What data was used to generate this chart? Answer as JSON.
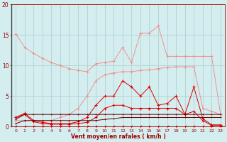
{
  "x": [
    0,
    1,
    2,
    3,
    4,
    5,
    6,
    7,
    8,
    9,
    10,
    11,
    12,
    13,
    14,
    15,
    16,
    17,
    18,
    19,
    20,
    21,
    22,
    23
  ],
  "line_upper": [
    15.2,
    13.0,
    12.0,
    11.2,
    10.5,
    10.0,
    9.5,
    9.2,
    9.0,
    10.3,
    10.5,
    10.7,
    13.0,
    10.5,
    15.3,
    15.3,
    16.5,
    11.5,
    11.5,
    11.5,
    11.5,
    11.5,
    11.5,
    2.0
  ],
  "line_rising": [
    1.0,
    1.0,
    1.0,
    1.0,
    1.0,
    1.5,
    2.0,
    3.0,
    5.0,
    7.5,
    8.5,
    8.8,
    9.0,
    9.0,
    9.2,
    9.3,
    9.5,
    9.7,
    9.8,
    9.8,
    9.8,
    3.0,
    2.5,
    2.0
  ],
  "line_red_high": [
    1.5,
    2.2,
    1.0,
    0.7,
    0.5,
    0.5,
    0.5,
    0.8,
    1.5,
    3.5,
    5.0,
    5.0,
    7.5,
    6.5,
    5.0,
    6.5,
    3.5,
    3.8,
    5.0,
    2.0,
    6.5,
    1.3,
    0.3,
    0.3
  ],
  "line_red_low": [
    1.5,
    2.0,
    0.8,
    0.5,
    0.4,
    0.4,
    0.4,
    0.5,
    0.7,
    1.5,
    3.0,
    3.5,
    3.5,
    3.0,
    3.0,
    3.0,
    3.0,
    3.0,
    3.0,
    2.0,
    2.5,
    1.0,
    0.2,
    0.2
  ],
  "line_dark1": [
    1.2,
    2.0,
    2.0,
    2.0,
    2.0,
    2.0,
    2.0,
    2.0,
    2.0,
    2.0,
    2.0,
    2.0,
    2.0,
    2.0,
    2.0,
    2.0,
    2.0,
    2.0,
    2.0,
    2.0,
    2.0,
    2.0,
    2.0,
    2.0
  ],
  "line_dark2": [
    0.5,
    1.0,
    1.0,
    1.0,
    1.0,
    1.0,
    1.0,
    1.0,
    1.0,
    1.0,
    1.2,
    1.3,
    1.5,
    1.5,
    1.5,
    1.5,
    1.5,
    1.5,
    1.5,
    1.5,
    1.5,
    1.5,
    1.5,
    1.5
  ],
  "line_near_zero": [
    0.05,
    0.05,
    0.05,
    0.05,
    0.05,
    0.05,
    0.05,
    0.05,
    0.05,
    0.05,
    0.05,
    0.05,
    0.05,
    0.05,
    0.05,
    0.05,
    0.05,
    0.05,
    0.05,
    0.05,
    0.05,
    0.05,
    0.05,
    0.05
  ],
  "color_light_pink": "#f09090",
  "color_red": "#dd0000",
  "color_dark_red": "#990000",
  "color_very_dark": "#660000",
  "background": "#d4eef0",
  "grid_color": "#aacccc",
  "xlabel": "Vent moyen/en rafales ( km/h )",
  "ylim": [
    0,
    20
  ],
  "xlim": [
    -0.5,
    23.5
  ],
  "yticks": [
    0,
    5,
    10,
    15,
    20
  ],
  "xticks": [
    0,
    1,
    2,
    3,
    4,
    5,
    6,
    7,
    8,
    9,
    10,
    11,
    12,
    13,
    14,
    15,
    16,
    17,
    18,
    19,
    20,
    21,
    22,
    23
  ]
}
